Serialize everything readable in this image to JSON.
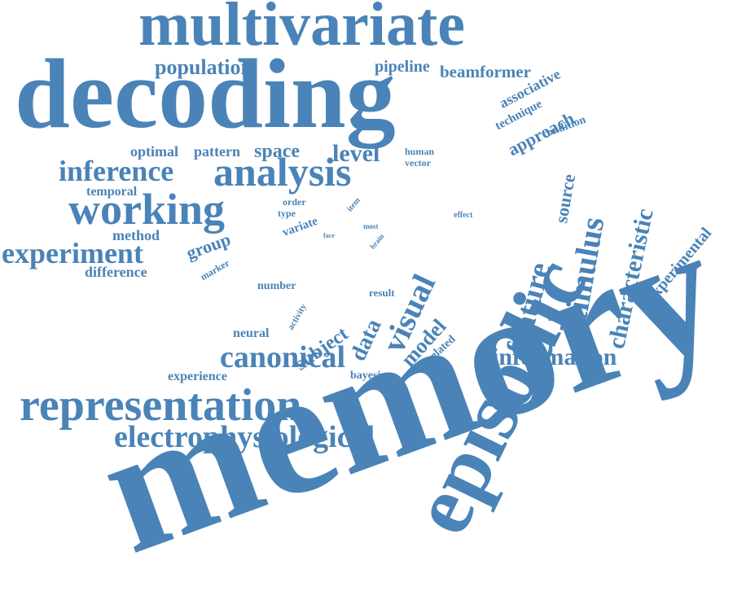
{
  "color": "#4a83b7",
  "words": {
    "memory": "memory",
    "decoding": "decoding",
    "multivariate": "multivariate",
    "episodic": "episodic",
    "representation": "representation",
    "analysis": "analysis",
    "working": "working",
    "inference": "inference",
    "electrophysiological": "electrophysiological",
    "canonical": "canonical",
    "experiment": "experiment",
    "stimulus": "stimulus",
    "feature": "feature",
    "characteristic": "characteristic",
    "information": "information",
    "visual": "visual",
    "population": "population",
    "space": "space",
    "level": "level",
    "pattern": "pattern",
    "optimal": "optimal",
    "approach": "approach",
    "pipeline": "pipeline",
    "beamformer": "beamformer",
    "associative": "associative",
    "technique": "technique",
    "condition": "condition",
    "experimental": "experimental",
    "source": "source",
    "model": "model",
    "data": "data",
    "subject": "subject",
    "group": "group",
    "method": "method",
    "difference": "difference",
    "temporal": "temporal",
    "experience": "experience",
    "bayesian": "bayesian",
    "number": "number",
    "neural": "neural",
    "result": "result",
    "related": "related",
    "activity": "activity",
    "marker": "marker",
    "human": "human",
    "vector": "vector",
    "order": "order",
    "type": "type",
    "variate": "variate",
    "item": "item",
    "face": "face",
    "most": "most",
    "brain": "brain",
    "effect": "effect"
  }
}
